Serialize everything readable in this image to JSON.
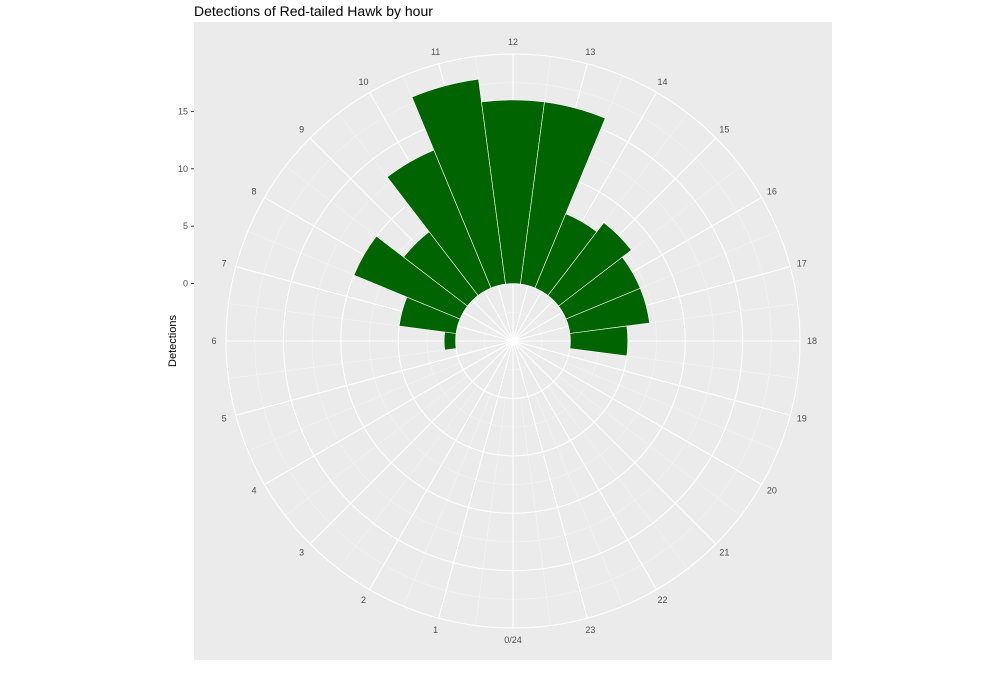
{
  "chart_data": {
    "type": "bar",
    "coord": "polar",
    "title": "Detections of Red-tailed Hawk by hour",
    "xlabel": "",
    "ylabel": "Detections",
    "categories": [
      "0/24",
      "1",
      "2",
      "3",
      "4",
      "5",
      "6",
      "7",
      "8",
      "9",
      "10",
      "11",
      "12",
      "13",
      "14",
      "15",
      "16",
      "17",
      "18",
      "19",
      "20",
      "21",
      "22",
      "23"
    ],
    "hours": [
      0,
      1,
      2,
      3,
      4,
      5,
      6,
      7,
      8,
      9,
      10,
      11,
      12,
      13,
      14,
      15,
      16,
      17,
      18,
      19,
      20,
      21,
      22,
      23
    ],
    "values": [
      0,
      0,
      0,
      0,
      0,
      0,
      1,
      5,
      10,
      7,
      13,
      18,
      16,
      16,
      7,
      8,
      7,
      7,
      5,
      0,
      0,
      0,
      0,
      0
    ],
    "value_hours": [
      0,
      1,
      2,
      3,
      4,
      5,
      6,
      7,
      8,
      9,
      10,
      11,
      12,
      13,
      14,
      15,
      16,
      17,
      18,
      19,
      20,
      21,
      22,
      23
    ],
    "ylim": [
      -5,
      20
    ],
    "y_ticks": [
      0,
      5,
      10,
      15
    ],
    "bar_color": "#006400",
    "panel_color": "#EBEBEB",
    "grid_color": "#FFFFFF",
    "grid": true
  }
}
